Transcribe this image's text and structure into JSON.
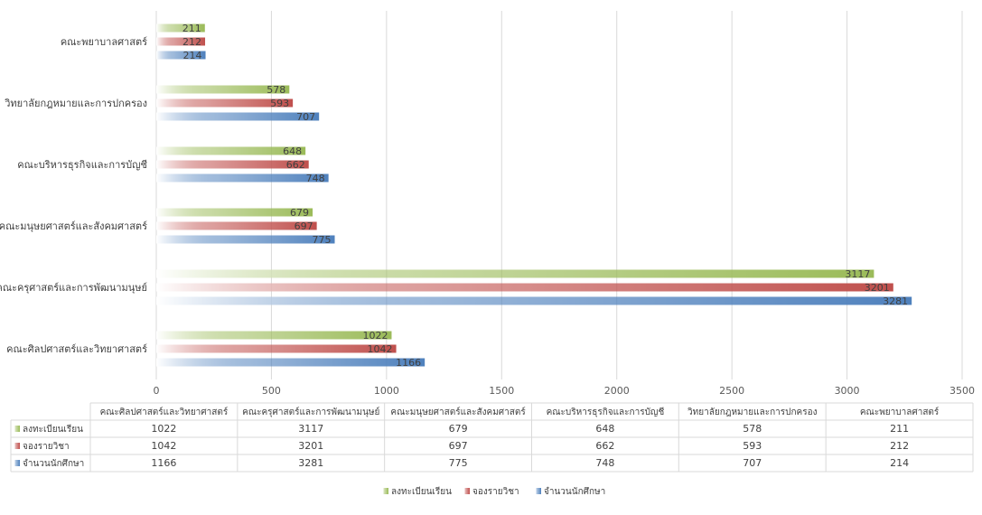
{
  "chart_data": {
    "type": "bar",
    "orientation": "horizontal",
    "title": "",
    "xlabel": "",
    "ylabel": "",
    "xlim": [
      0,
      3500
    ],
    "xticks": [
      0,
      500,
      1000,
      1500,
      2000,
      2500,
      3000,
      3500
    ],
    "grid": "vertical",
    "legend_position": "bottom",
    "categories": [
      "คณะศิลปศาสตร์และวิทยาศาสตร์",
      "คณะครุศาสตร์และการพัฒนามนุษย์",
      "คณะมนุษยศาสตร์และสังคมศาสตร์",
      "คณะบริหารธุรกิจและการบัญชี",
      "วิทยาลัยกฎหมายและการปกครอง",
      "คณะพยาบาลศาสตร์"
    ],
    "series": [
      {
        "name": "ลงทะเบียนเรียน",
        "color": "#9BBB59",
        "values": [
          1022,
          3117,
          679,
          648,
          578,
          211
        ]
      },
      {
        "name": "จองรายวิชา",
        "color": "#C0504D",
        "values": [
          1042,
          3201,
          697,
          662,
          593,
          212
        ]
      },
      {
        "name": "จำนวนนักศึกษา",
        "color": "#4F81BD",
        "values": [
          1166,
          3281,
          775,
          748,
          707,
          214
        ]
      }
    ],
    "data_table": true
  }
}
